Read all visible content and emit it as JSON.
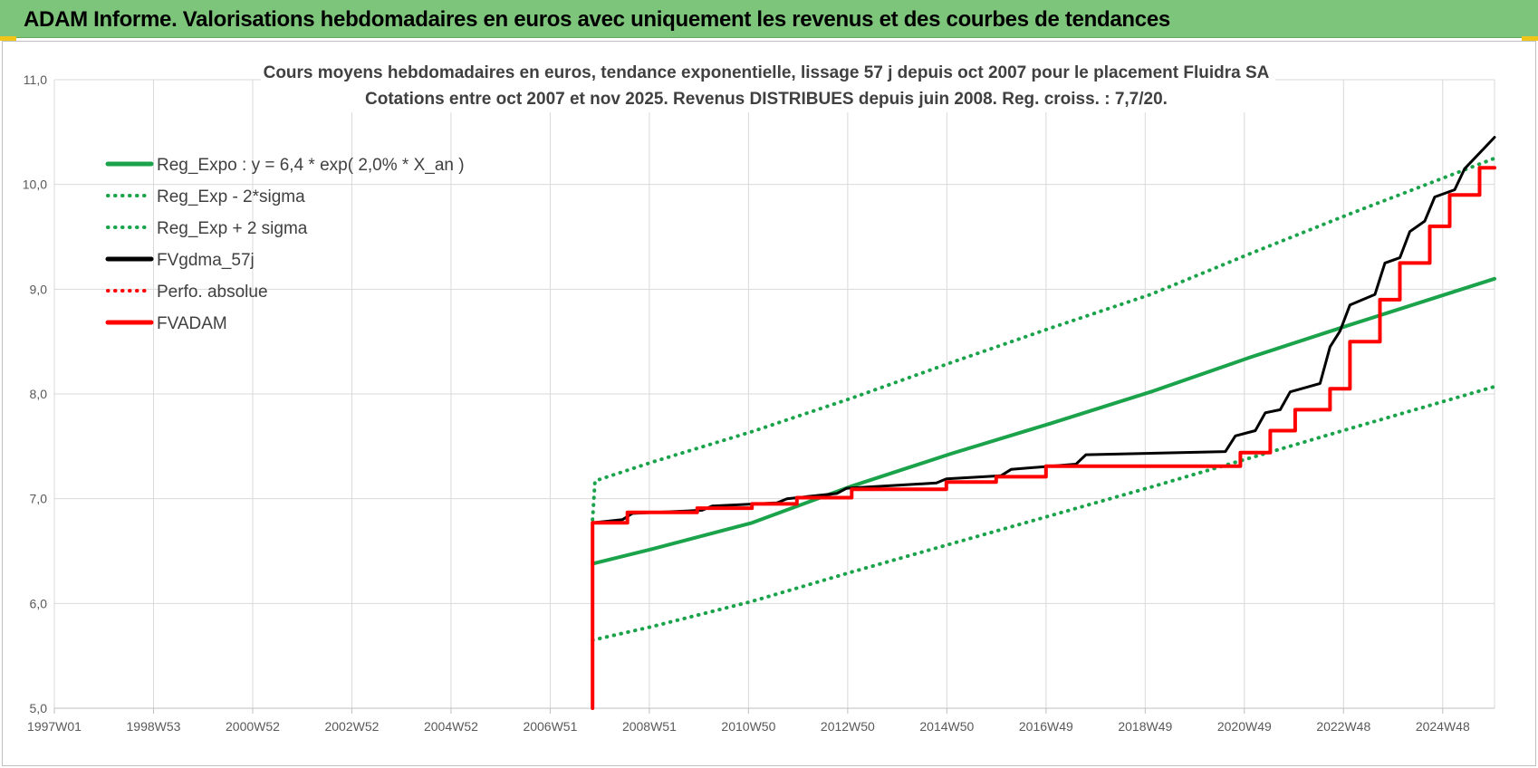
{
  "banner": {
    "title": "ADAM Informe. Valorisations hebdomadaires en euros avec uniquement les revenus et des courbes de tendances"
  },
  "chart_data": {
    "type": "line",
    "title": "Cours moyens hebdomadaires en euros, tendance exponentielle, lissage 57 j depuis oct 2007 pour le placement Fluidra SA",
    "subtitle": "Cotations entre oct 2007 et nov 2025. Revenus DISTRIBUES depuis juin 2008. Reg. croiss. : 7,7/20.",
    "xlabel": "",
    "ylabel": "",
    "x_tick_labels": [
      "1997W01",
      "1998W53",
      "2000W52",
      "2002W52",
      "2004W52",
      "2006W51",
      "2008W51",
      "2010W50",
      "2012W50",
      "2014W50",
      "2016W49",
      "2018W49",
      "2020W49",
      "2022W48",
      "2024W48"
    ],
    "y_tick_labels": [
      "5,0",
      "6,0",
      "7,0",
      "8,0",
      "9,0",
      "10,0",
      "11,0"
    ],
    "ylim": [
      5.0,
      11.0
    ],
    "xlim": [
      1997.0,
      2025.9
    ],
    "grid": true,
    "legend_position": "top-left",
    "series": [
      {
        "name": "Reg_Expo : y = 6,4 * exp( 2,0% *  X_an )",
        "style": "solid",
        "color": "#1aa34a",
        "x": [
          2007.8,
          2009.0,
          2011.0,
          2013.0,
          2015.0,
          2017.0,
          2019.0,
          2021.0,
          2023.0,
          2025.9
        ],
        "y": [
          6.38,
          6.52,
          6.77,
          7.12,
          7.43,
          7.72,
          8.02,
          8.35,
          8.66,
          9.1
        ]
      },
      {
        "name": "Reg_Exp - 2*sigma",
        "style": "dotted",
        "color": "#1aa34a",
        "x": [
          2007.8,
          2009.0,
          2011.0,
          2013.0,
          2015.0,
          2017.0,
          2019.0,
          2021.0,
          2023.0,
          2025.9
        ],
        "y": [
          5.65,
          5.78,
          6.02,
          6.3,
          6.57,
          6.84,
          7.11,
          7.39,
          7.67,
          8.07
        ]
      },
      {
        "name": "Reg_Exp + 2 sigma",
        "style": "dotted",
        "color": "#1aa34a",
        "x": [
          2007.8,
          2007.85,
          2009.0,
          2011.0,
          2013.0,
          2015.0,
          2017.0,
          2019.0,
          2021.0,
          2023.0,
          2025.9
        ],
        "y": [
          6.8,
          7.17,
          7.35,
          7.64,
          7.96,
          8.3,
          8.63,
          8.95,
          9.34,
          9.72,
          10.25
        ]
      },
      {
        "name": "FVgdma_57j",
        "style": "solid",
        "color": "#000000",
        "x": [
          2007.8,
          2008.4,
          2008.6,
          2010.0,
          2010.2,
          2011.5,
          2011.7,
          2012.7,
          2012.9,
          2014.7,
          2014.9,
          2016.0,
          2016.2,
          2017.5,
          2017.7,
          2020.5,
          2020.7,
          2021.1,
          2021.3,
          2021.6,
          2021.8,
          2022.4,
          2022.6,
          2022.8,
          2023.0,
          2023.5,
          2023.7,
          2024.0,
          2024.2,
          2024.5,
          2024.7,
          2025.1,
          2025.3,
          2025.9
        ],
        "y": [
          6.77,
          6.8,
          6.86,
          6.89,
          6.93,
          6.96,
          7.0,
          7.05,
          7.1,
          7.15,
          7.19,
          7.22,
          7.28,
          7.33,
          7.42,
          7.45,
          7.6,
          7.65,
          7.82,
          7.85,
          8.02,
          8.1,
          8.45,
          8.6,
          8.85,
          8.95,
          9.25,
          9.3,
          9.55,
          9.65,
          9.88,
          9.95,
          10.15,
          10.45
        ]
      },
      {
        "name": "Perfo. absolue",
        "style": "dotted",
        "color": "#ff0000",
        "x": [],
        "y": []
      },
      {
        "name": "FVADAM",
        "style": "solid",
        "color": "#ff0000",
        "x": [
          2007.8,
          2007.8,
          2008.5,
          2008.5,
          2009.9,
          2009.9,
          2011.0,
          2011.0,
          2011.9,
          2011.9,
          2013.0,
          2013.0,
          2014.9,
          2014.9,
          2015.9,
          2015.9,
          2016.9,
          2016.9,
          2020.8,
          2020.8,
          2021.4,
          2021.4,
          2021.9,
          2021.9,
          2022.6,
          2022.6,
          2023.0,
          2023.0,
          2023.6,
          2023.6,
          2024.0,
          2024.0,
          2024.6,
          2024.6,
          2025.0,
          2025.0,
          2025.6,
          2025.6,
          2025.9
        ],
        "y": [
          5.0,
          6.77,
          6.77,
          6.87,
          6.87,
          6.91,
          6.91,
          6.95,
          6.95,
          7.01,
          7.01,
          7.09,
          7.09,
          7.16,
          7.16,
          7.21,
          7.21,
          7.31,
          7.31,
          7.44,
          7.44,
          7.65,
          7.65,
          7.85,
          7.85,
          8.05,
          8.05,
          8.5,
          8.5,
          8.9,
          8.9,
          9.25,
          9.25,
          9.6,
          9.6,
          9.9,
          9.9,
          10.16,
          10.16
        ]
      }
    ]
  }
}
